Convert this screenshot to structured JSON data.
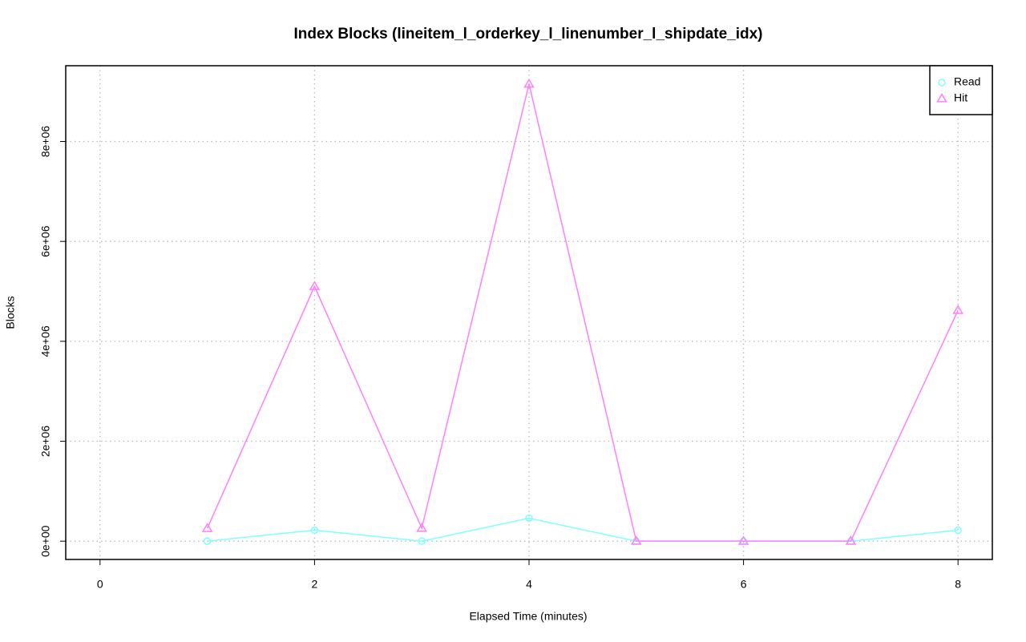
{
  "chart_data": {
    "type": "line",
    "title": "Index Blocks (lineitem_l_orderkey_l_linenumber_l_shipdate_idx)",
    "x_label": "Elapsed Time (minutes)",
    "y_label": "Blocks",
    "x": [
      1,
      2,
      3,
      4,
      5,
      6,
      7,
      8
    ],
    "series": [
      {
        "name": "Read",
        "color": "#7fffff",
        "marker": "circle",
        "values": [
          0,
          220000,
          0,
          460000,
          0,
          0,
          0,
          220000
        ]
      },
      {
        "name": "Hit",
        "color": "#ff7fff",
        "marker": "triangle",
        "values": [
          256000,
          5100000,
          260000,
          9150000,
          0,
          0,
          0,
          4620000
        ]
      }
    ],
    "xlim": [
      -0.32,
      8.32
    ],
    "xticks": [
      0,
      2,
      4,
      6,
      8
    ],
    "ylim": [
      -366000,
      9516000
    ],
    "yticks": [
      {
        "value": 0,
        "label": "0e+00"
      },
      {
        "value": 2000000,
        "label": "2e+06"
      },
      {
        "value": 4000000,
        "label": "4e+06"
      },
      {
        "value": 6000000,
        "label": "6e+06"
      },
      {
        "value": 8000000,
        "label": "8e+06"
      }
    ],
    "grid": true,
    "legend": "topright"
  }
}
